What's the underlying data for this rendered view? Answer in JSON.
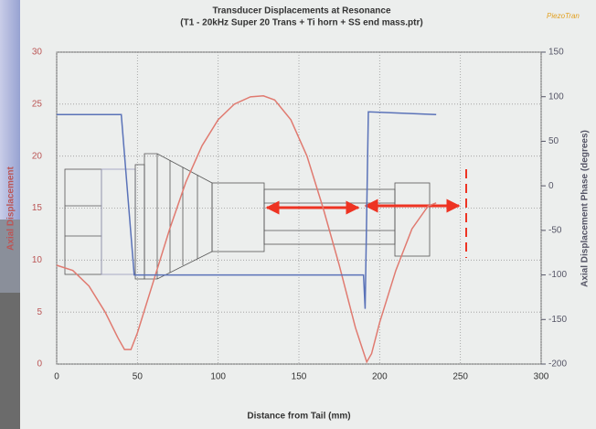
{
  "chart_data": {
    "type": "line",
    "title": "Transducer Displacements at Resonance",
    "subtitle": "(T1 - 20kHz Super 20 Trans + Ti horn + SS end mass.ptr)",
    "logo": "PiezoTran",
    "x_label": "Distance from Tail (mm)",
    "y_label": "Axial Displacement",
    "y2_label": "Axial Displacement Phase (degrees)",
    "xlim": [
      0,
      300
    ],
    "xticks": [
      0,
      50,
      100,
      150,
      200,
      250,
      300
    ],
    "ylim": [
      0,
      30
    ],
    "yticks": [
      0,
      5,
      10,
      15,
      20,
      25,
      30
    ],
    "y2lim": [
      -200,
      150
    ],
    "y2ticks": [
      -200,
      -150,
      -100,
      -50,
      0,
      50,
      100,
      150
    ],
    "grid": true,
    "series": [
      {
        "color": "#e07a70",
        "x": [
          0,
          10,
          20,
          30,
          38,
          42,
          46,
          50,
          60,
          70,
          80,
          90,
          100,
          110,
          120,
          128,
          135,
          145,
          155,
          165,
          175,
          185,
          192,
          195,
          200,
          210,
          220,
          230,
          235
        ],
        "values": [
          9.5,
          9,
          7.5,
          5,
          2.5,
          1.4,
          1.4,
          3,
          8,
          13,
          17.5,
          21,
          23.5,
          25,
          25.7,
          25.8,
          25.4,
          23.5,
          20,
          15,
          9.5,
          3.5,
          0.2,
          1,
          4,
          9,
          13,
          15.2,
          15.5
        ]
      },
      {
        "color": "#5a72b8",
        "axis": "y2",
        "x": [
          0,
          40,
          48,
          190,
          191,
          193,
          235
        ],
        "values": [
          80,
          80,
          -100,
          -100,
          -138,
          83,
          80
        ]
      }
    ]
  }
}
